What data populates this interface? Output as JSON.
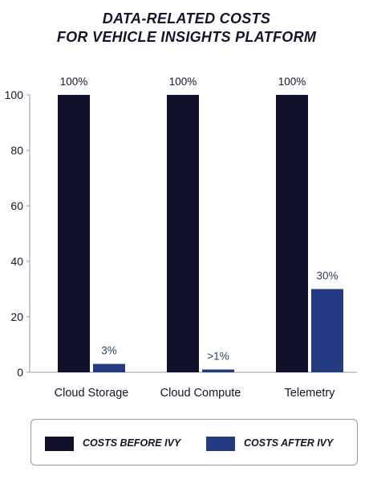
{
  "chart_data": {
    "type": "bar",
    "title": [
      "DATA-RELATED COSTS",
      "FOR VEHICLE INSIGHTS PLATFORM"
    ],
    "categories": [
      "Cloud Storage",
      "Cloud Compute",
      "Telemetry"
    ],
    "series": [
      {
        "name": "COSTS BEFORE IVY",
        "color": "#10102a",
        "values": [
          100,
          100,
          100
        ],
        "labels": [
          "100%",
          "100%",
          "100%"
        ]
      },
      {
        "name": "COSTS AFTER IVY",
        "color": "#233b80",
        "values": [
          3,
          1,
          30
        ],
        "labels": [
          "3%",
          ">1%",
          "30%"
        ]
      }
    ],
    "ylim": [
      0,
      100
    ],
    "yticks": [
      0,
      20,
      40,
      60,
      80,
      100
    ],
    "grid": false,
    "legend_position": "bottom"
  }
}
